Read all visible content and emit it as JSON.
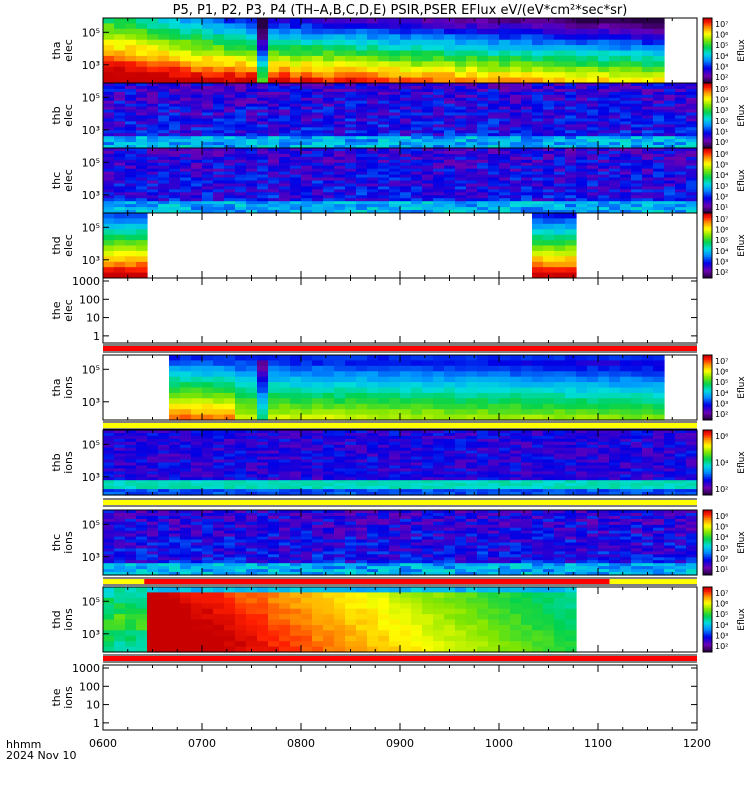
{
  "chart_data": {
    "type": "heatmap",
    "title": "P5, P1, P2, P3, P4 (TH–A,B,C,D,E) PSIR,PSER EFlux eV/(eV*cm²*sec*sr)",
    "xlabel": "hhmm",
    "date_label": "2024 Nov 10",
    "x_ticks": [
      "0600",
      "0700",
      "0800",
      "0900",
      "1000",
      "1100",
      "1200"
    ],
    "xlim": [
      "0600",
      "1200"
    ],
    "colorbar_label": "Eflux",
    "panels": [
      {
        "name": "tha elec",
        "label": [
          "tha",
          "elec"
        ],
        "kind": "spec",
        "y_ticks": [
          "10⁵",
          "10³"
        ],
        "cbar_ticks": [
          "10⁷",
          "10⁶",
          "10⁵",
          "10⁴",
          "10³",
          "10²"
        ],
        "pattern": "tha_elec",
        "data_end": "1140"
      },
      {
        "name": "thb elec",
        "label": [
          "thb",
          "elec"
        ],
        "kind": "spec",
        "y_ticks": [
          "10⁵",
          "10³"
        ],
        "cbar_ticks": [
          "10⁵",
          "10⁴",
          "10³",
          "10²",
          "10¹",
          "10⁰"
        ],
        "pattern": "noise"
      },
      {
        "name": "thc elec",
        "label": [
          "thc",
          "elec"
        ],
        "kind": "spec",
        "y_ticks": [
          "10⁵",
          "10³"
        ],
        "cbar_ticks": [
          "10⁶",
          "10⁵",
          "10⁴",
          "10³",
          "10²",
          "10¹"
        ],
        "pattern": "noise"
      },
      {
        "name": "thd elec",
        "label": [
          "thd",
          "elec"
        ],
        "kind": "spec",
        "y_ticks": [
          "10⁵",
          "10³"
        ],
        "cbar_ticks": [
          "10⁷",
          "10⁶",
          "10⁵",
          "10⁴",
          "10³",
          "10²"
        ],
        "pattern": "thd_elec"
      },
      {
        "name": "the elec",
        "label": [
          "the",
          "elec"
        ],
        "kind": "empty",
        "y_ticks": [
          "1000",
          "100",
          "10",
          "1"
        ]
      },
      {
        "name": "tha ions",
        "label": [
          "tha",
          "ions"
        ],
        "kind": "spec",
        "y_ticks": [
          "10⁵",
          "10³"
        ],
        "cbar_ticks": [
          "10⁷",
          "10⁶",
          "10⁵",
          "10⁴",
          "10³",
          "10²"
        ],
        "pattern": "tha_ions",
        "data_start": "0637",
        "data_end": "1140"
      },
      {
        "name": "thb ions",
        "label": [
          "thb",
          "ions"
        ],
        "kind": "spec",
        "y_ticks": [
          "10⁵",
          "10³"
        ],
        "cbar_ticks": [
          "10⁶",
          "10⁴",
          "10²"
        ],
        "pattern": "noise_ions"
      },
      {
        "name": "thc ions",
        "label": [
          "thc",
          "ions"
        ],
        "kind": "spec",
        "y_ticks": [
          "10⁵",
          "10³"
        ],
        "cbar_ticks": [
          "10⁶",
          "10⁵",
          "10⁴",
          "10³",
          "10²",
          "10¹"
        ],
        "pattern": "noise"
      },
      {
        "name": "thd ions",
        "label": [
          "thd",
          "ions"
        ],
        "kind": "spec",
        "y_ticks": [
          "10⁵",
          "10³"
        ],
        "cbar_ticks": [
          "10⁷",
          "10⁶",
          "10⁵",
          "10⁴",
          "10³",
          "10²"
        ],
        "pattern": "thd_ions",
        "data_end": "1047"
      },
      {
        "name": "the ions",
        "label": [
          "the",
          "ions"
        ],
        "kind": "empty",
        "y_ticks": [
          "1000",
          "100",
          "10",
          "1"
        ]
      }
    ],
    "mode_bars": [
      {
        "after": "the elec",
        "segments": [
          {
            "from": "0600",
            "to": "1200",
            "color": "#ff0000"
          }
        ]
      },
      {
        "after": "tha ions",
        "segments": [
          {
            "from": "0600",
            "to": "1200",
            "color": "#ffff00"
          }
        ]
      },
      {
        "after": "thb ions",
        "segments": [
          {
            "from": "0600",
            "to": "1200",
            "color": "#ffff00"
          }
        ]
      },
      {
        "after": "thc ions",
        "segments": [
          {
            "from": "0600",
            "to": "0625",
            "color": "#ffff00"
          },
          {
            "from": "0625",
            "to": "1107",
            "color": "#ff0000"
          },
          {
            "from": "1107",
            "to": "1200",
            "color": "#ffff00"
          }
        ]
      },
      {
        "after": "thd ions",
        "segments": [
          {
            "from": "0600",
            "to": "1200",
            "color": "#ff0000"
          }
        ]
      }
    ]
  }
}
